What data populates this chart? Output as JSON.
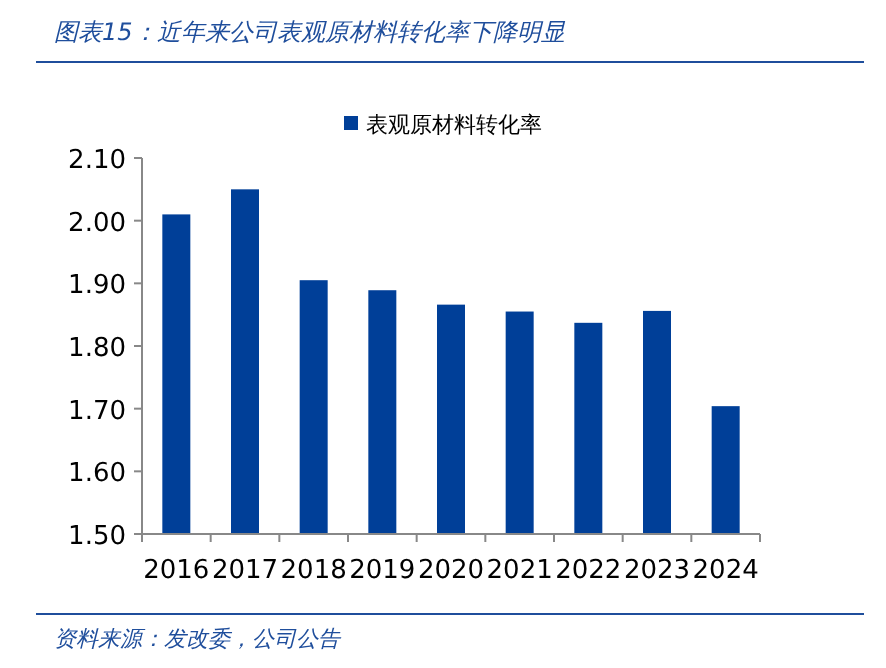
{
  "chart_data": {
    "type": "bar",
    "title": "图表15：近年来公司表观原材料转化率下降明显",
    "annotations": [
      "资料来源：发改委，公司公告"
    ],
    "categories": [
      "2016",
      "2017",
      "2018",
      "2019",
      "2020",
      "2021",
      "2022",
      "2023",
      "2024"
    ],
    "series": [
      {
        "name": "表观原材料转化率",
        "color": "#003f98",
        "values": [
          2.01,
          2.05,
          1.905,
          1.889,
          1.866,
          1.855,
          1.837,
          1.856,
          1.704
        ]
      }
    ],
    "ylim": [
      1.5,
      2.1
    ],
    "yticks": [
      {
        "value": 1.5,
        "label": "1.50"
      },
      {
        "value": 1.6,
        "label": "1.60"
      },
      {
        "value": 1.7,
        "label": "1.70"
      },
      {
        "value": 1.8,
        "label": "1.80"
      },
      {
        "value": 1.9,
        "label": "1.90"
      },
      {
        "value": 2.0,
        "label": "2.00"
      },
      {
        "value": 2.1,
        "label": "2.10"
      }
    ],
    "legend": "top",
    "grid": false
  }
}
